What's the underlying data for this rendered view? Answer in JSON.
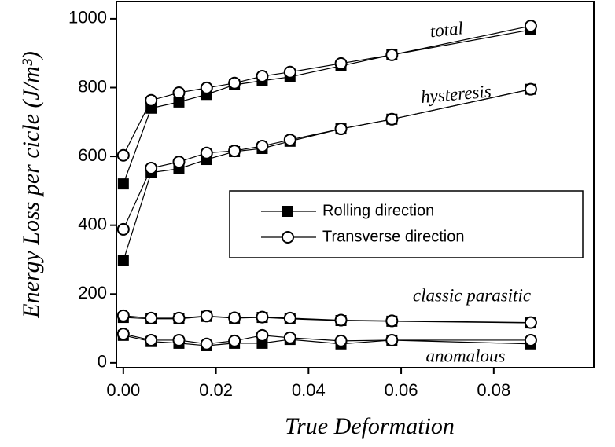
{
  "chart_data": {
    "type": "line",
    "xlabel": "True Deformation",
    "ylabel": "Energy Loss per cicle (J/m³)",
    "x": [
      0,
      0.006,
      0.012,
      0.018,
      0.024,
      0.03,
      0.036,
      0.047,
      0.058,
      0.088
    ],
    "xlim": [
      -0.0015,
      0.1016
    ],
    "xticks": [
      {
        "value": 0,
        "label": "0.00"
      },
      {
        "value": 0.02,
        "label": "0.02"
      },
      {
        "value": 0.04,
        "label": "0.04"
      },
      {
        "value": 0.06,
        "label": "0.06"
      },
      {
        "value": 0.08,
        "label": "0.08"
      }
    ],
    "ylim": [
      -14,
      1050
    ],
    "yticks": [
      0,
      200,
      400,
      600,
      800,
      1000
    ],
    "curve_labels": [
      "total",
      "hysteresis",
      "classic parasitic",
      "anomalous"
    ],
    "series": [
      {
        "name": "Rolling direction",
        "marker": "square",
        "color": "#000000",
        "curves": [
          [
            520,
            740,
            758,
            780,
            808,
            820,
            831,
            863,
            895,
            968
          ],
          [
            297,
            553,
            564,
            591,
            614,
            623,
            644,
            680,
            708,
            795
          ],
          [
            132,
            128,
            128,
            135,
            130,
            132,
            128,
            123,
            121,
            116
          ],
          [
            80,
            62,
            57,
            50,
            57,
            57,
            68,
            55,
            66,
            55
          ]
        ]
      },
      {
        "name": "Transverse direction",
        "marker": "circle",
        "color": "#000000",
        "curves": [
          [
            603,
            763,
            785,
            799,
            813,
            833,
            845,
            870,
            895,
            979
          ],
          [
            388,
            566,
            584,
            610,
            616,
            630,
            648,
            680,
            708,
            795
          ],
          [
            137,
            130,
            130,
            136,
            131,
            133,
            130,
            124,
            122,
            117
          ],
          [
            84,
            66,
            66,
            55,
            64,
            80,
            73,
            64,
            66,
            66
          ]
        ]
      }
    ]
  }
}
